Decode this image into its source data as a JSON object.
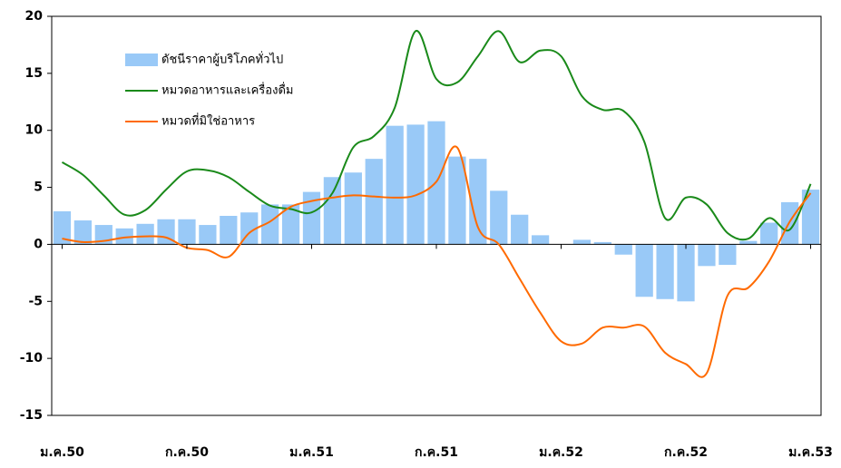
{
  "chart_data": {
    "type": "bar",
    "categories": [
      "ม.ค.50",
      null,
      null,
      null,
      null,
      null,
      "ก.ค.50",
      null,
      null,
      null,
      null,
      null,
      "ม.ค.51",
      null,
      null,
      null,
      null,
      null,
      "ก.ค.51",
      null,
      null,
      null,
      null,
      null,
      "ม.ค.52",
      null,
      null,
      null,
      null,
      null,
      "ก.ค.52",
      null,
      null,
      null,
      null,
      null,
      "ม.ค.53"
    ],
    "series": [
      {
        "name": "ดัชนีราคาผู้บริโภคทั่วไป",
        "type": "bar",
        "color": "#99c9f7",
        "values": [
          2.9,
          2.1,
          1.7,
          1.4,
          1.8,
          2.2,
          2.2,
          1.7,
          2.5,
          2.8,
          3.5,
          3.5,
          4.6,
          5.9,
          6.3,
          7.5,
          10.4,
          10.5,
          10.8,
          7.7,
          7.5,
          4.7,
          2.6,
          0.8,
          0,
          0.4,
          0.2,
          -0.9,
          -4.6,
          -4.8,
          -5.0,
          -1.9,
          -1.8,
          0.3,
          1.9,
          3.7,
          4.8
        ]
      },
      {
        "name": "หมวดอาหารและเครื่องดื่ม",
        "type": "line",
        "color": "#1a8a1a",
        "values": [
          7.2,
          6.1,
          4.3,
          2.6,
          3.0,
          4.8,
          6.4,
          6.5,
          5.9,
          4.6,
          3.4,
          3.1,
          2.8,
          4.5,
          8.5,
          9.5,
          12.0,
          18.7,
          14.5,
          14.2,
          16.5,
          18.7,
          16.0,
          17.0,
          16.5,
          13.0,
          11.8,
          11.7,
          9.0,
          2.3,
          4.1,
          3.5,
          1.0,
          0.5,
          2.3,
          1.3,
          5.3
        ]
      },
      {
        "name": "หมวดที่มิใช่อาหาร",
        "type": "line",
        "color": "#ff6a00",
        "values": [
          0.5,
          0.2,
          0.3,
          0.6,
          0.7,
          0.6,
          -0.3,
          -0.5,
          -1.1,
          1.0,
          2.0,
          3.3,
          3.8,
          4.1,
          4.3,
          4.2,
          4.1,
          4.3,
          5.5,
          8.5,
          1.5,
          0,
          -3.0,
          -6.0,
          -8.5,
          -8.7,
          -7.3,
          -7.3,
          -7.2,
          -9.5,
          -10.5,
          -11.3,
          -4.5,
          -3.8,
          -1.5,
          2.0,
          4.5
        ]
      }
    ],
    "ylim": [
      -15,
      20
    ],
    "yticks": [
      -15,
      -10,
      -5,
      0,
      5,
      10,
      15,
      20
    ],
    "grid": false,
    "legend": "upper left"
  }
}
